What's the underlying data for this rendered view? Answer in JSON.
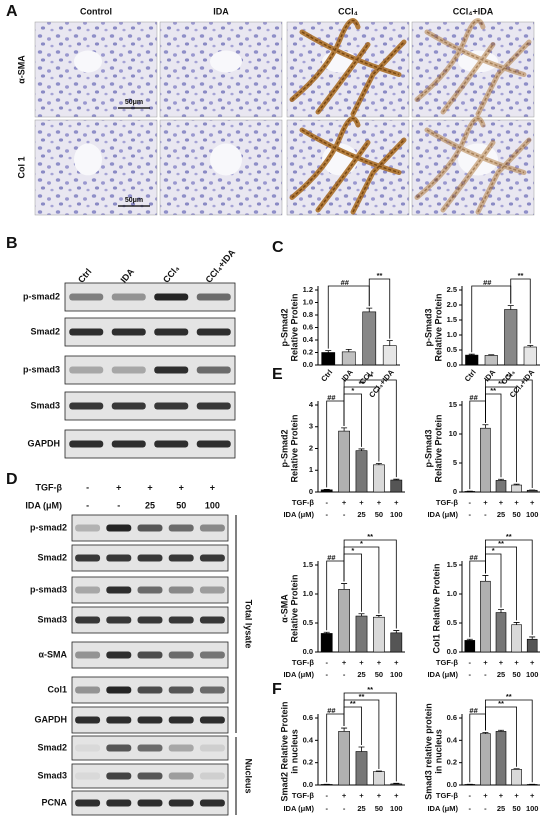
{
  "figure": {
    "panel_labels": [
      "A",
      "B",
      "C",
      "D",
      "E",
      "F"
    ],
    "A": {
      "columns": [
        "Control",
        "IDA",
        "CCl₄",
        "CCl₄+IDA"
      ],
      "rows": [
        "α-SMA",
        "Col 1"
      ],
      "scale_bar": "50μm"
    },
    "B": {
      "columns": [
        "Ctrl",
        "IDA",
        "CCl₄",
        "CCl₄+IDA"
      ],
      "rows": [
        "p-smad2",
        "Smad2",
        "p-smad3",
        "Smad3",
        "GAPDH"
      ]
    },
    "D": {
      "conditions": [
        {
          "name": "TGF-β",
          "labels": [
            "-",
            "+",
            "+",
            "+",
            "+"
          ]
        },
        {
          "name": "IDA (μM)",
          "labels": [
            "-",
            "-",
            "25",
            "50",
            "100"
          ]
        }
      ],
      "total_lysate_rows": [
        "p-smad2",
        "Smad2",
        "p-smad3",
        "Smad3",
        "α-SMA",
        "Col1",
        "GAPDH"
      ],
      "nucleus_rows": [
        "Smad2",
        "Smad3",
        "PCNA"
      ],
      "groups": [
        "Total lysate",
        "Nucleus"
      ]
    }
  },
  "chart_data": [
    {
      "type": "bar",
      "ylabel": [
        "p-Smad2",
        "Relative Protein"
      ],
      "categories": [
        "Ctrl",
        "IDA",
        "CCl₄",
        "CCl₄+IDA"
      ],
      "values": [
        0.2,
        0.21,
        0.85,
        0.31
      ],
      "errors": [
        0.03,
        0.04,
        0.06,
        0.08
      ],
      "colors": [
        "#000000",
        "#c0c0c0",
        "#888888",
        "#e6e6e6"
      ],
      "ylim": [
        0,
        1.2
      ],
      "yticks": [
        {
          "value": 0,
          "label": "0.0"
        },
        0.2,
        0.4,
        0.6,
        0.8,
        {
          "value": 1,
          "label": "1.0"
        },
        1.2
      ],
      "annotations": [
        {
          "text": "##",
          "bars": [
            0,
            2
          ]
        },
        {
          "text": "**",
          "bars": [
            2,
            3
          ]
        }
      ]
    },
    {
      "type": "bar",
      "ylabel": [
        "p-Smad3",
        "Relative Protein"
      ],
      "categories": [
        "Ctrl",
        "IDA",
        "CCl₄",
        "CCl₄+IDA"
      ],
      "values": [
        0.33,
        0.32,
        1.85,
        0.6
      ],
      "errors": [
        0.03,
        0.02,
        0.13,
        0.05
      ],
      "colors": [
        "#000000",
        "#c0c0c0",
        "#888888",
        "#e6e6e6"
      ],
      "ylim": [
        0,
        2.5
      ],
      "yticks": [
        {
          "value": 0,
          "label": "0.0"
        },
        0.5,
        {
          "value": 1,
          "label": "1.0"
        },
        1.5,
        {
          "value": 2,
          "label": "2.0"
        },
        2.5
      ],
      "annotations": [
        {
          "text": "##",
          "bars": [
            0,
            2
          ]
        },
        {
          "text": "**",
          "bars": [
            2,
            3
          ]
        }
      ]
    },
    {
      "type": "bar",
      "ylabel": [
        "p-Smad2",
        "Relative Protein"
      ],
      "values": [
        0.1,
        2.8,
        1.9,
        1.25,
        0.55
      ],
      "errors": [
        0.02,
        0.15,
        0.08,
        0.06,
        0.04
      ],
      "colors": [
        "#000000",
        "#b0b0b0",
        "#777777",
        "#d9d9d9",
        "#555555"
      ],
      "ylim": [
        0,
        4
      ],
      "yticks": [
        0,
        1,
        2,
        3,
        4
      ],
      "annotations": [
        {
          "text": "##",
          "bars": [
            0,
            1
          ]
        },
        {
          "text": "*",
          "bars": [
            1,
            2
          ]
        },
        {
          "text": "**",
          "bars": [
            1,
            3
          ]
        },
        {
          "text": "**",
          "bars": [
            1,
            4
          ]
        }
      ]
    },
    {
      "type": "bar",
      "ylabel": [
        "p-Smad3",
        "Relative Protein"
      ],
      "values": [
        0.1,
        11,
        2,
        1.2,
        0.3
      ],
      "errors": [
        0.05,
        0.6,
        0.2,
        0.15,
        0.05
      ],
      "colors": [
        "#000000",
        "#b0b0b0",
        "#777777",
        "#d9d9d9",
        "#555555"
      ],
      "ylim": [
        0,
        15
      ],
      "yticks": [
        0,
        5,
        10,
        15
      ],
      "annotations": [
        {
          "text": "##",
          "bars": [
            0,
            1
          ]
        },
        {
          "text": "**",
          "bars": [
            1,
            2
          ]
        },
        {
          "text": "**",
          "bars": [
            1,
            3
          ]
        },
        {
          "text": "**",
          "bars": [
            1,
            4
          ]
        }
      ]
    },
    {
      "type": "bar",
      "ylabel": [
        "α-SMA",
        "Relative Protein"
      ],
      "values": [
        0.32,
        1.08,
        0.62,
        0.6,
        0.33
      ],
      "errors": [
        0.02,
        0.1,
        0.04,
        0.03,
        0.04
      ],
      "colors": [
        "#000000",
        "#b0b0b0",
        "#777777",
        "#d9d9d9",
        "#555555"
      ],
      "ylim": [
        0,
        1.5
      ],
      "yticks": [
        {
          "value": 0,
          "label": "0.0"
        },
        0.5,
        {
          "value": 1,
          "label": "1.0"
        },
        1.5
      ],
      "annotations": [
        {
          "text": "##",
          "bars": [
            0,
            1
          ]
        },
        {
          "text": "*",
          "bars": [
            1,
            2
          ]
        },
        {
          "text": "*",
          "bars": [
            1,
            3
          ]
        },
        {
          "text": "**",
          "bars": [
            1,
            4
          ]
        }
      ]
    },
    {
      "type": "bar",
      "ylabel": [
        "Col1 Relative Protein"
      ],
      "values": [
        0.2,
        1.22,
        0.68,
        0.47,
        0.22
      ],
      "errors": [
        0.02,
        0.1,
        0.05,
        0.04,
        0.04
      ],
      "colors": [
        "#000000",
        "#b0b0b0",
        "#777777",
        "#d9d9d9",
        "#555555"
      ],
      "ylim": [
        0,
        1.5
      ],
      "yticks": [
        {
          "value": 0,
          "label": "0.0"
        },
        0.5,
        {
          "value": 1,
          "label": "1.0"
        },
        1.5
      ],
      "annotations": [
        {
          "text": "##",
          "bars": [
            0,
            1
          ]
        },
        {
          "text": "*",
          "bars": [
            1,
            2
          ]
        },
        {
          "text": "**",
          "bars": [
            1,
            3
          ]
        },
        {
          "text": "**",
          "bars": [
            1,
            4
          ]
        }
      ]
    },
    {
      "type": "bar",
      "ylabel": [
        "Smad2 Relative Protein",
        "in nucleus"
      ],
      "values": [
        0.005,
        0.48,
        0.3,
        0.12,
        0.01
      ],
      "errors": [
        0.002,
        0.03,
        0.04,
        0.005,
        0.005
      ],
      "colors": [
        "#000000",
        "#b0b0b0",
        "#777777",
        "#d9d9d9",
        "#555555"
      ],
      "ylim": [
        0,
        0.6
      ],
      "yticks": [
        {
          "value": 0,
          "label": "0.0"
        },
        0.2,
        0.4,
        0.6
      ],
      "annotations": [
        {
          "text": "##",
          "bars": [
            0,
            1
          ]
        },
        {
          "text": "**",
          "bars": [
            1,
            2
          ]
        },
        {
          "text": "**",
          "bars": [
            1,
            3
          ]
        },
        {
          "text": "**",
          "bars": [
            1,
            4
          ]
        }
      ]
    },
    {
      "type": "bar",
      "ylabel": [
        "Smad3 relative protein",
        "in nucleus"
      ],
      "values": [
        0.005,
        0.46,
        0.48,
        0.14,
        0.005
      ],
      "errors": [
        0.002,
        0.01,
        0.01,
        0.005,
        0.002
      ],
      "colors": [
        "#000000",
        "#b0b0b0",
        "#777777",
        "#d9d9d9",
        "#555555"
      ],
      "ylim": [
        0,
        0.6
      ],
      "yticks": [
        {
          "value": 0,
          "label": "0.0"
        },
        0.2,
        0.4,
        0.6
      ],
      "annotations": [
        {
          "text": "##",
          "bars": [
            0,
            1
          ]
        },
        {
          "text": "**",
          "bars": [
            1,
            3
          ]
        },
        {
          "text": "**",
          "bars": [
            1,
            4
          ]
        }
      ]
    }
  ]
}
